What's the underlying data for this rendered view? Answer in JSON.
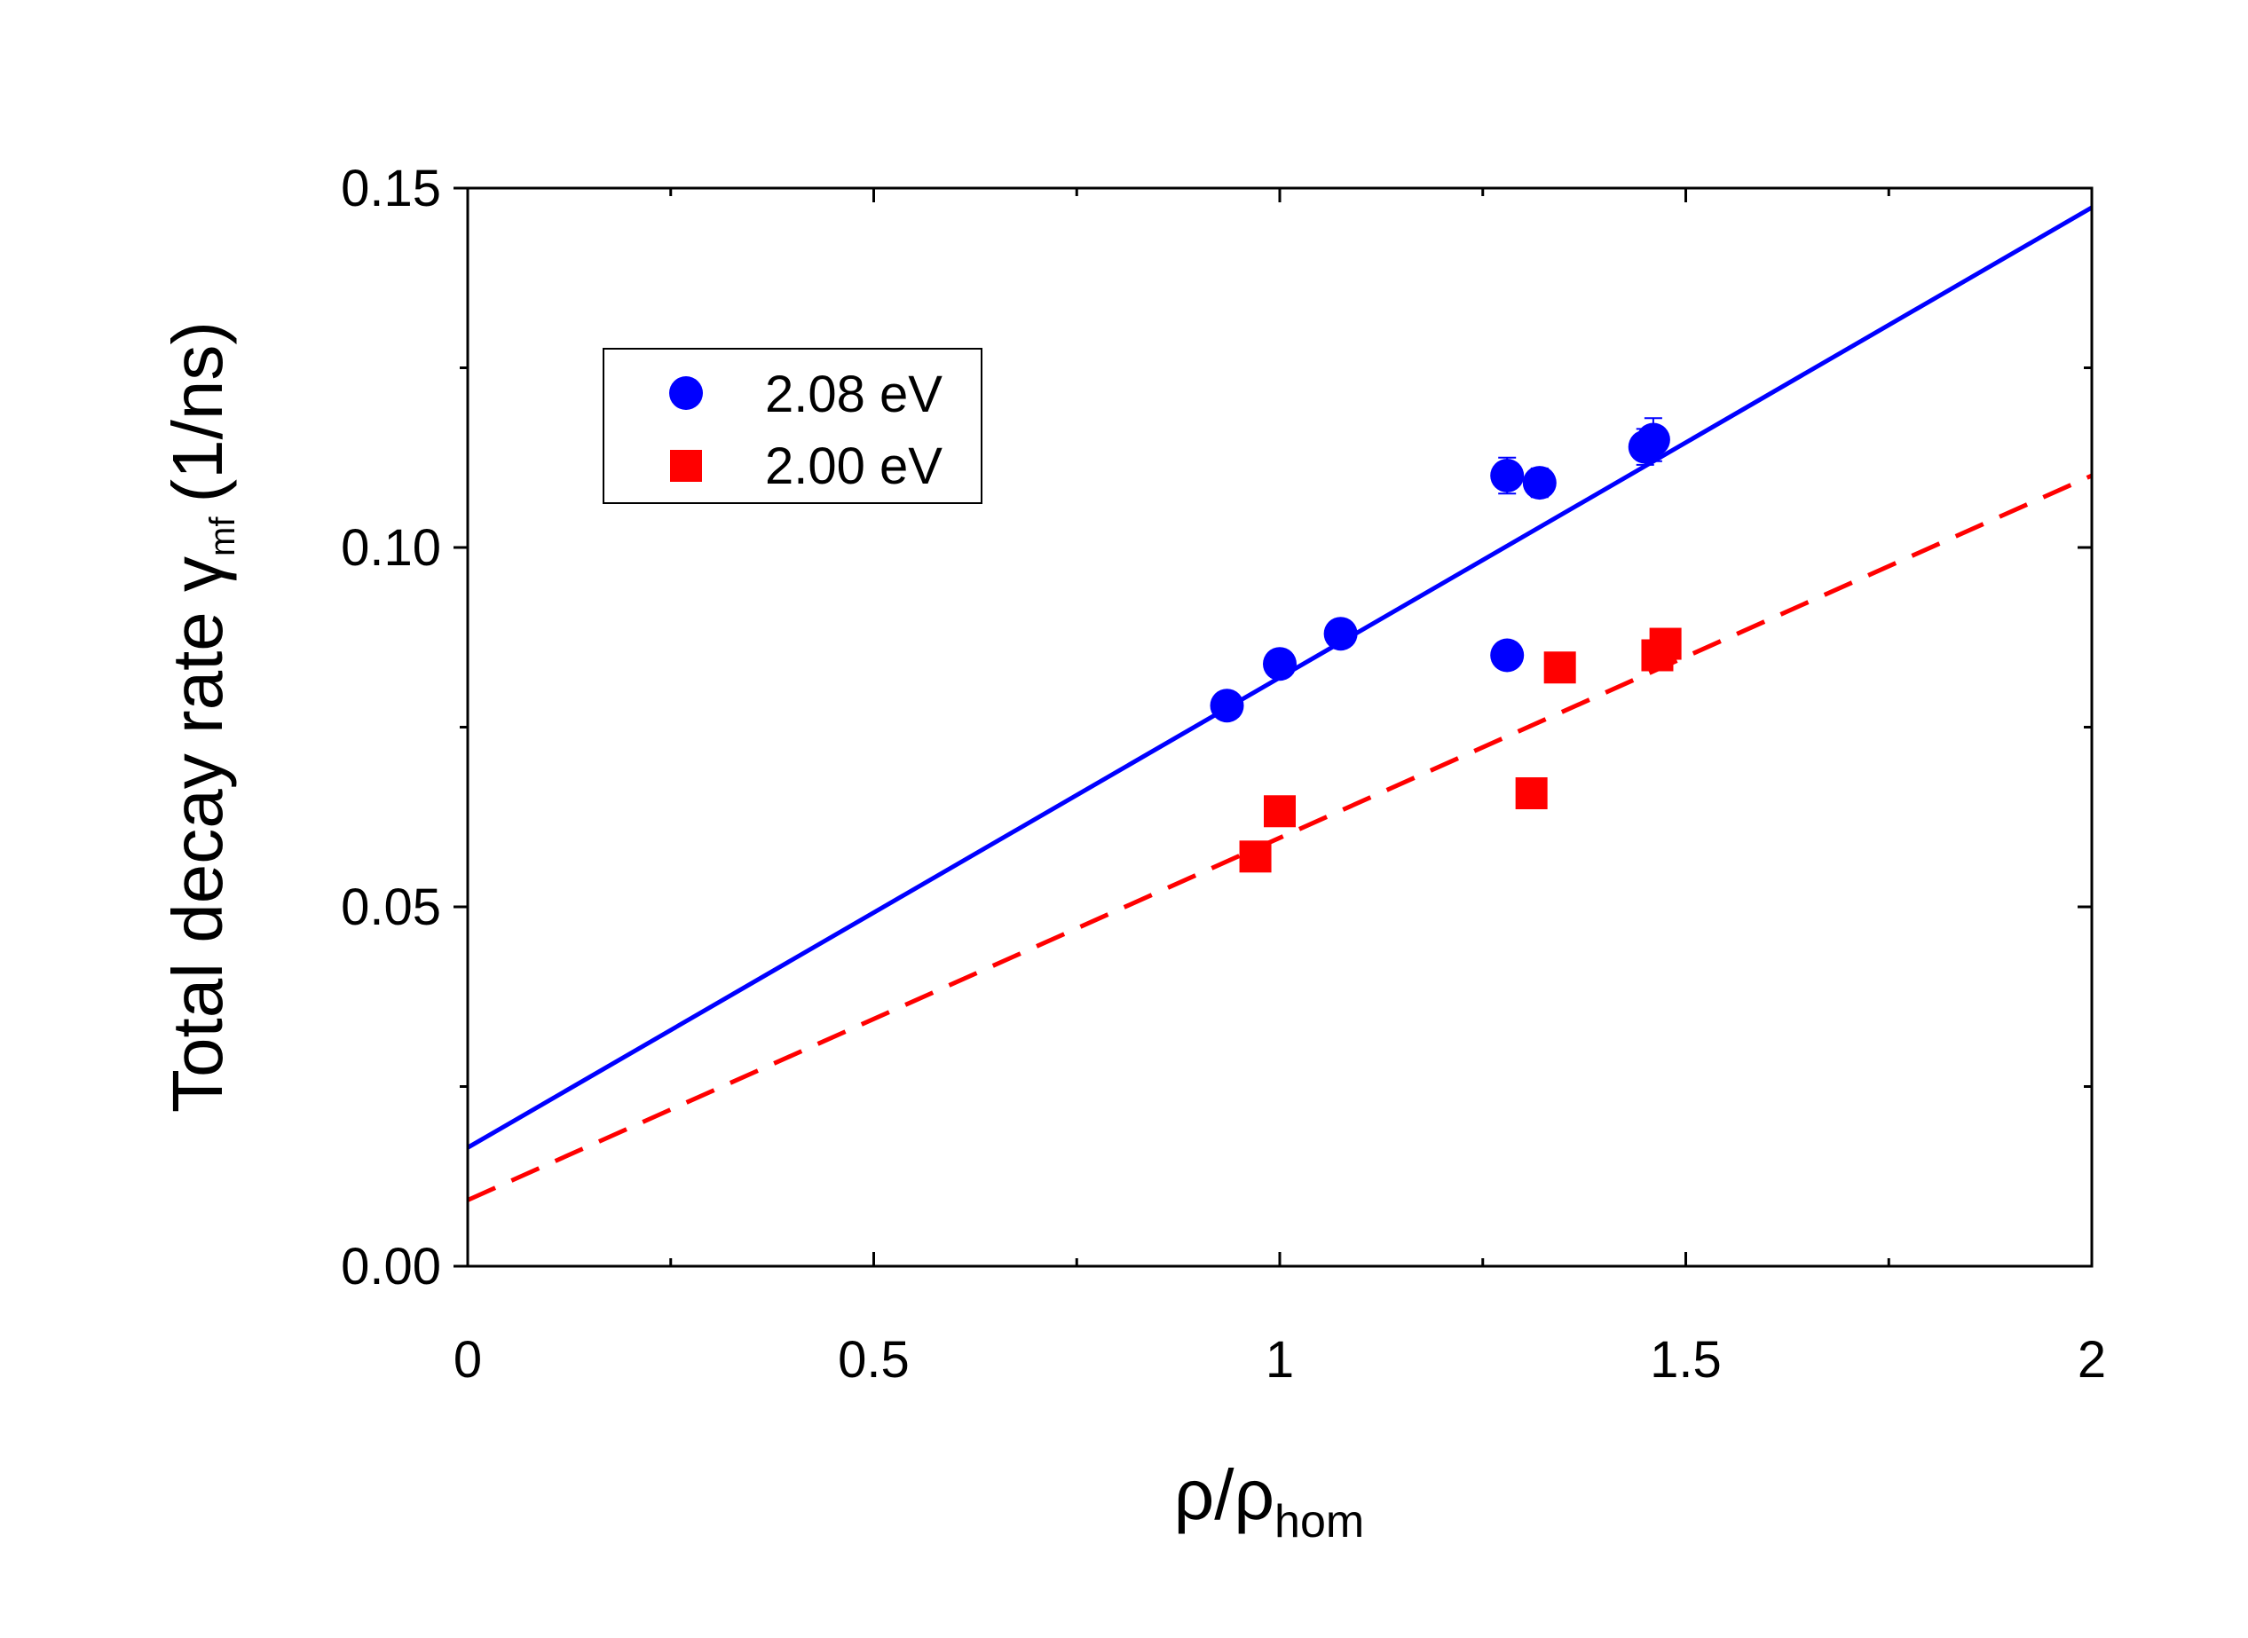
{
  "chart_data": {
    "type": "scatter",
    "title": "",
    "xlabel": {
      "base": "ρ/ρ",
      "sub": "hom"
    },
    "ylabel": {
      "prefix": "Total decay rate γ",
      "sub": "mf",
      "suffix": "(1/ns)"
    },
    "xlim": [
      0,
      2
    ],
    "ylim": [
      0,
      0.15
    ],
    "xticks": [
      0,
      0.5,
      1,
      1.5,
      2
    ],
    "xtick_labels": [
      "0",
      "0.5",
      "1",
      "1.5",
      "2"
    ],
    "yticks": [
      0,
      0.05,
      0.1,
      0.15
    ],
    "ytick_labels": [
      "0.00",
      "0.05",
      "0.10",
      "0.15"
    ],
    "x_minor_step": 0.25,
    "y_minor_step": 0.025,
    "grid": false,
    "legend_position": "upper-left",
    "series": [
      {
        "name": "2.08 eV",
        "marker": "circle",
        "color": "#0000ff",
        "x": [
          0.935,
          1.0,
          1.075,
          1.28,
          1.28,
          1.32,
          1.45,
          1.46
        ],
        "y": [
          0.078,
          0.0838,
          0.088,
          0.085,
          0.11,
          0.109,
          0.114,
          0.115
        ],
        "yerr": [
          0.001,
          0.001,
          0.0015,
          0.001,
          0.0025,
          0.002,
          0.0025,
          0.003
        ],
        "fit": {
          "type": "linear",
          "style": "solid",
          "intercept": 0.0165,
          "slope": 0.0654
        }
      },
      {
        "name": "2.00 eV",
        "marker": "square",
        "color": "#ff0000",
        "x": [
          0.97,
          1.0,
          1.31,
          1.345,
          1.465,
          1.475
        ],
        "y": [
          0.057,
          0.0633,
          0.0658,
          0.0833,
          0.085,
          0.0866
        ],
        "yerr": [
          0.0008,
          0.0008,
          0.0008,
          0.0015,
          0.0015,
          0.0015
        ],
        "fit": {
          "type": "linear",
          "style": "dashed",
          "intercept": 0.0092,
          "slope": 0.0504
        }
      }
    ]
  }
}
